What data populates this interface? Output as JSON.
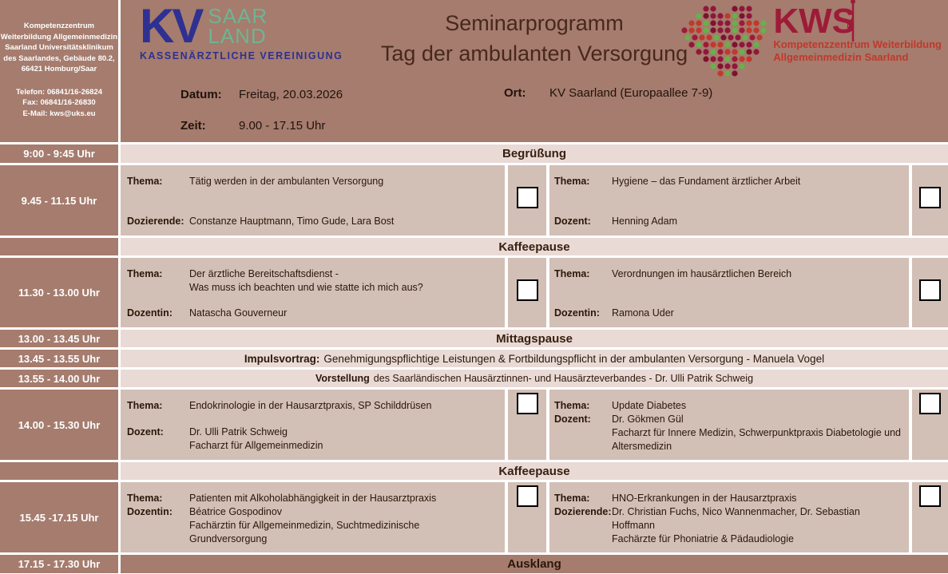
{
  "colors": {
    "header_bg": "#a57c6e",
    "session_bg": "#d2bfb6",
    "band_bg": "#e9dad6",
    "kv_blue": "#2e3192",
    "kv_green": "#6fb492",
    "kws_red": "#9e1b38",
    "kws_text_red": "#c0392b",
    "text_dark": "#2b1708"
  },
  "contact": {
    "line1": "Kompetenzzentrum",
    "line2": "Weiterbildung Allgemeinmedizin",
    "line3": "Saarland Universitätsklinikum",
    "line4": "des Saarlandes, Gebäude 80.2,",
    "line5": "66421 Homburg/Saar",
    "phone": "Telefon: 06841/16-26824",
    "fax": "Fax: 06841/16-26830",
    "email": "E-Mail: kws@uks.eu"
  },
  "header": {
    "title1": "Seminarprogramm",
    "title2": "Tag der ambulanten Versorgung",
    "kv": {
      "kv": "KV",
      "saar": "SAAR",
      "land": "LAND",
      "tagline": "KASSENÄRZTLICHE VEREINIGUNG"
    },
    "kws": {
      "word": "KWS",
      "line1": "Kompetenzzentrum Weiterbildung",
      "line2": "Allgemeinmedizin Saarland"
    },
    "meta": {
      "datum_label": "Datum:",
      "datum_value": "Freitag, 20.03.2026",
      "zeit_label": "Zeit:",
      "zeit_value": "9.00 - 17.15 Uhr",
      "ort_label": "Ort:",
      "ort_value": "KV Saarland (Europaallee 7-9)"
    }
  },
  "schedule": {
    "rows": [
      {
        "type": "band",
        "time": "9:00 - 9:45 Uhr",
        "label": "Begrüßung"
      },
      {
        "type": "session",
        "time": "9.45 - 11.15 Uhr",
        "left": {
          "thema_label": "Thema:",
          "thema": "Tätig werden in der ambulanten Versorgung",
          "doz_label": "Dozierende:",
          "doz": "Constanze Hauptmann, Timo Gude, Lara Bost"
        },
        "right": {
          "thema_label": "Thema:",
          "thema": "Hygiene – das Fundament ärztlicher Arbeit",
          "doz_label": "Dozent:",
          "doz": "Henning Adam"
        }
      },
      {
        "type": "band",
        "time": "",
        "label": "Kaffeepause"
      },
      {
        "type": "session",
        "time": "11.30 - 13.00 Uhr",
        "left": {
          "thema_label": "Thema:",
          "thema": "Der ärztliche Bereitschaftsdienst -",
          "thema2": "Was muss ich beachten und wie statte ich mich aus?",
          "doz_label": "Dozentin:",
          "doz": "Natascha Gouverneur"
        },
        "right": {
          "thema_label": "Thema:",
          "thema": "Verordnungen im hausärztlichen Bereich",
          "doz_label": "Dozentin:",
          "doz": "Ramona Uder"
        }
      },
      {
        "type": "band",
        "time": "13.00 - 13.45 Uhr",
        "label": "Mittagspause"
      },
      {
        "type": "band2",
        "time": "13.45 - 13.55 Uhr",
        "bold": "Impulsvortrag:",
        "rest": "Genehmigungspflichtige Leistungen & Fortbildungspflicht in der ambulanten Versorgung - Manuela Vogel"
      },
      {
        "type": "band2",
        "time": "13.55 - 14.00 Uhr",
        "bold": "Vorstellung",
        "rest": "des Saarländischen Hausärztinnen- und Hausärzteverbandes - Dr. Ulli Patrik Schweig"
      },
      {
        "type": "session",
        "time": "14.00 - 15.30 Uhr",
        "left": {
          "thema_label": "Thema:",
          "thema": "Endokrinologie in der Hausarztpraxis, SP Schilddrüsen",
          "doz_label": "Dozent:",
          "doz": "Dr. Ulli Patrik Schweig",
          "doz2": "Facharzt für Allgemeinmedizin"
        },
        "right": {
          "thema_label": "Thema:",
          "thema": "Update Diabetes",
          "doz_label": "Dozent:",
          "doz": "Dr. Gökmen Gül",
          "doz2": "Facharzt für Innere Medizin, Schwerpunktpraxis Diabetologie und Altersmedizin"
        }
      },
      {
        "type": "band",
        "time": "",
        "label": "Kaffeepause"
      },
      {
        "type": "session",
        "time": "15.45 -17.15 Uhr",
        "left": {
          "thema_label": "Thema:",
          "thema": "Patienten mit Alkoholabhängigkeit in der Hausarztpraxis",
          "doz_label": "Dozentin:",
          "doz": "Béatrice Gospodinov",
          "doz2": "Fachärztin für Allgemeinmedizin, Suchtmedizinische Grundversorgung"
        },
        "right": {
          "thema_label": "Thema:",
          "thema": "HNO-Erkrankungen in der Hausarztpraxis",
          "doz_label": "Dozierende:",
          "doz": "Dr. Christian Fuchs, Nico Wannenmacher, Dr. Sebastian Hoffmann",
          "doz2": "Fachärzte für Phoniatrie & Pädaudiologie"
        }
      },
      {
        "type": "band-dark",
        "time": "17.15 - 17.30 Uhr",
        "label": "Ausklang"
      }
    ]
  }
}
